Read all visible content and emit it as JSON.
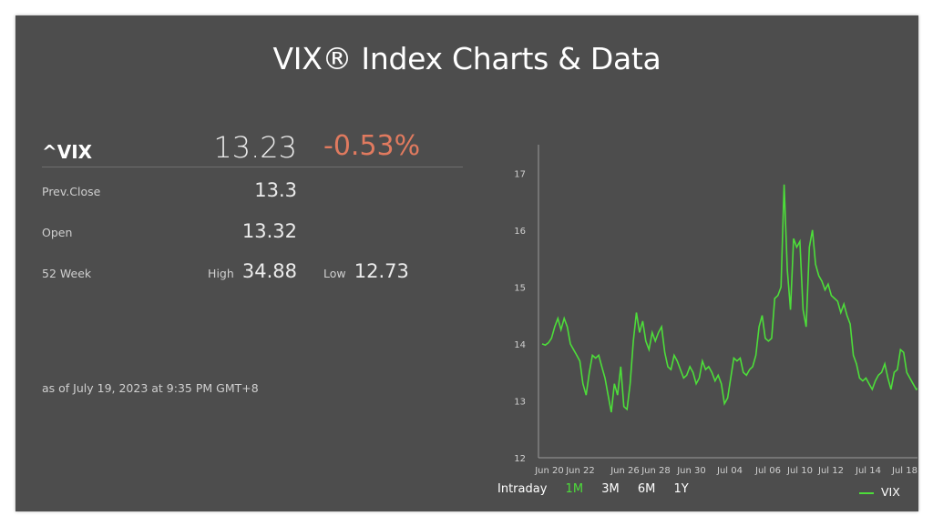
{
  "page": {
    "title": "VIX® Index Charts & Data"
  },
  "quote": {
    "symbol": "^VIX",
    "last": "13.23",
    "change": "-0.53%",
    "prev_close_label": "Prev.Close",
    "prev_close": "13.3",
    "open_label": "Open",
    "open": "13.32",
    "week52_label": "52 Week",
    "high_label": "High",
    "high": "34.88",
    "low_label": "Low",
    "low": "12.73",
    "as_of": "as of July 19, 2023 at 9:35 PM GMT+8"
  },
  "ranges": {
    "intraday": "Intraday",
    "m1": "1M",
    "m3": "3M",
    "m6": "6M",
    "y1": "1Y",
    "active": "1M"
  },
  "colors": {
    "line": "#4ddd3a",
    "change_negative": "#e07a5f",
    "panel": "#4d4d4d"
  },
  "chart_data": {
    "type": "line",
    "ylim": [
      12,
      17.5
    ],
    "yticks": [
      "12",
      "13",
      "14",
      "15",
      "16",
      "17"
    ],
    "xticks": [
      "Jun 20",
      "Jun 22",
      "Jun 26",
      "Jun 28",
      "Jun 30",
      "Jul 04",
      "Jul 06",
      "Jul 10",
      "Jul 12",
      "Jul 14",
      "Jul 18"
    ],
    "series": [
      {
        "name": "VIX",
        "values": [
          14.0,
          13.98,
          14.02,
          14.1,
          14.3,
          14.45,
          14.25,
          14.45,
          14.3,
          14.0,
          13.9,
          13.8,
          13.7,
          13.3,
          13.1,
          13.5,
          13.8,
          13.75,
          13.8,
          13.6,
          13.4,
          13.1,
          12.8,
          13.3,
          13.1,
          13.6,
          12.9,
          12.85,
          13.3,
          14.05,
          14.55,
          14.2,
          14.4,
          14.05,
          13.9,
          14.2,
          14.05,
          14.2,
          14.3,
          13.85,
          13.6,
          13.55,
          13.8,
          13.7,
          13.55,
          13.4,
          13.45,
          13.6,
          13.5,
          13.3,
          13.4,
          13.7,
          13.55,
          13.6,
          13.5,
          13.35,
          13.45,
          13.3,
          12.95,
          13.05,
          13.4,
          13.75,
          13.7,
          13.75,
          13.5,
          13.45,
          13.55,
          13.6,
          13.8,
          14.3,
          14.5,
          14.1,
          14.05,
          14.1,
          14.8,
          14.85,
          15.0,
          16.8,
          15.3,
          14.6,
          15.85,
          15.7,
          15.8,
          14.6,
          14.3,
          15.7,
          16.0,
          15.4,
          15.2,
          15.1,
          14.95,
          15.05,
          14.85,
          14.8,
          14.75,
          14.55,
          14.7,
          14.5,
          14.35,
          13.8,
          13.65,
          13.4,
          13.35,
          13.4,
          13.3,
          13.2,
          13.35,
          13.45,
          13.5,
          13.65,
          13.4,
          13.2,
          13.5,
          13.55,
          13.9,
          13.85,
          13.5,
          13.4,
          13.3,
          13.2,
          13.23
        ]
      }
    ],
    "legend": "bottom-right"
  }
}
